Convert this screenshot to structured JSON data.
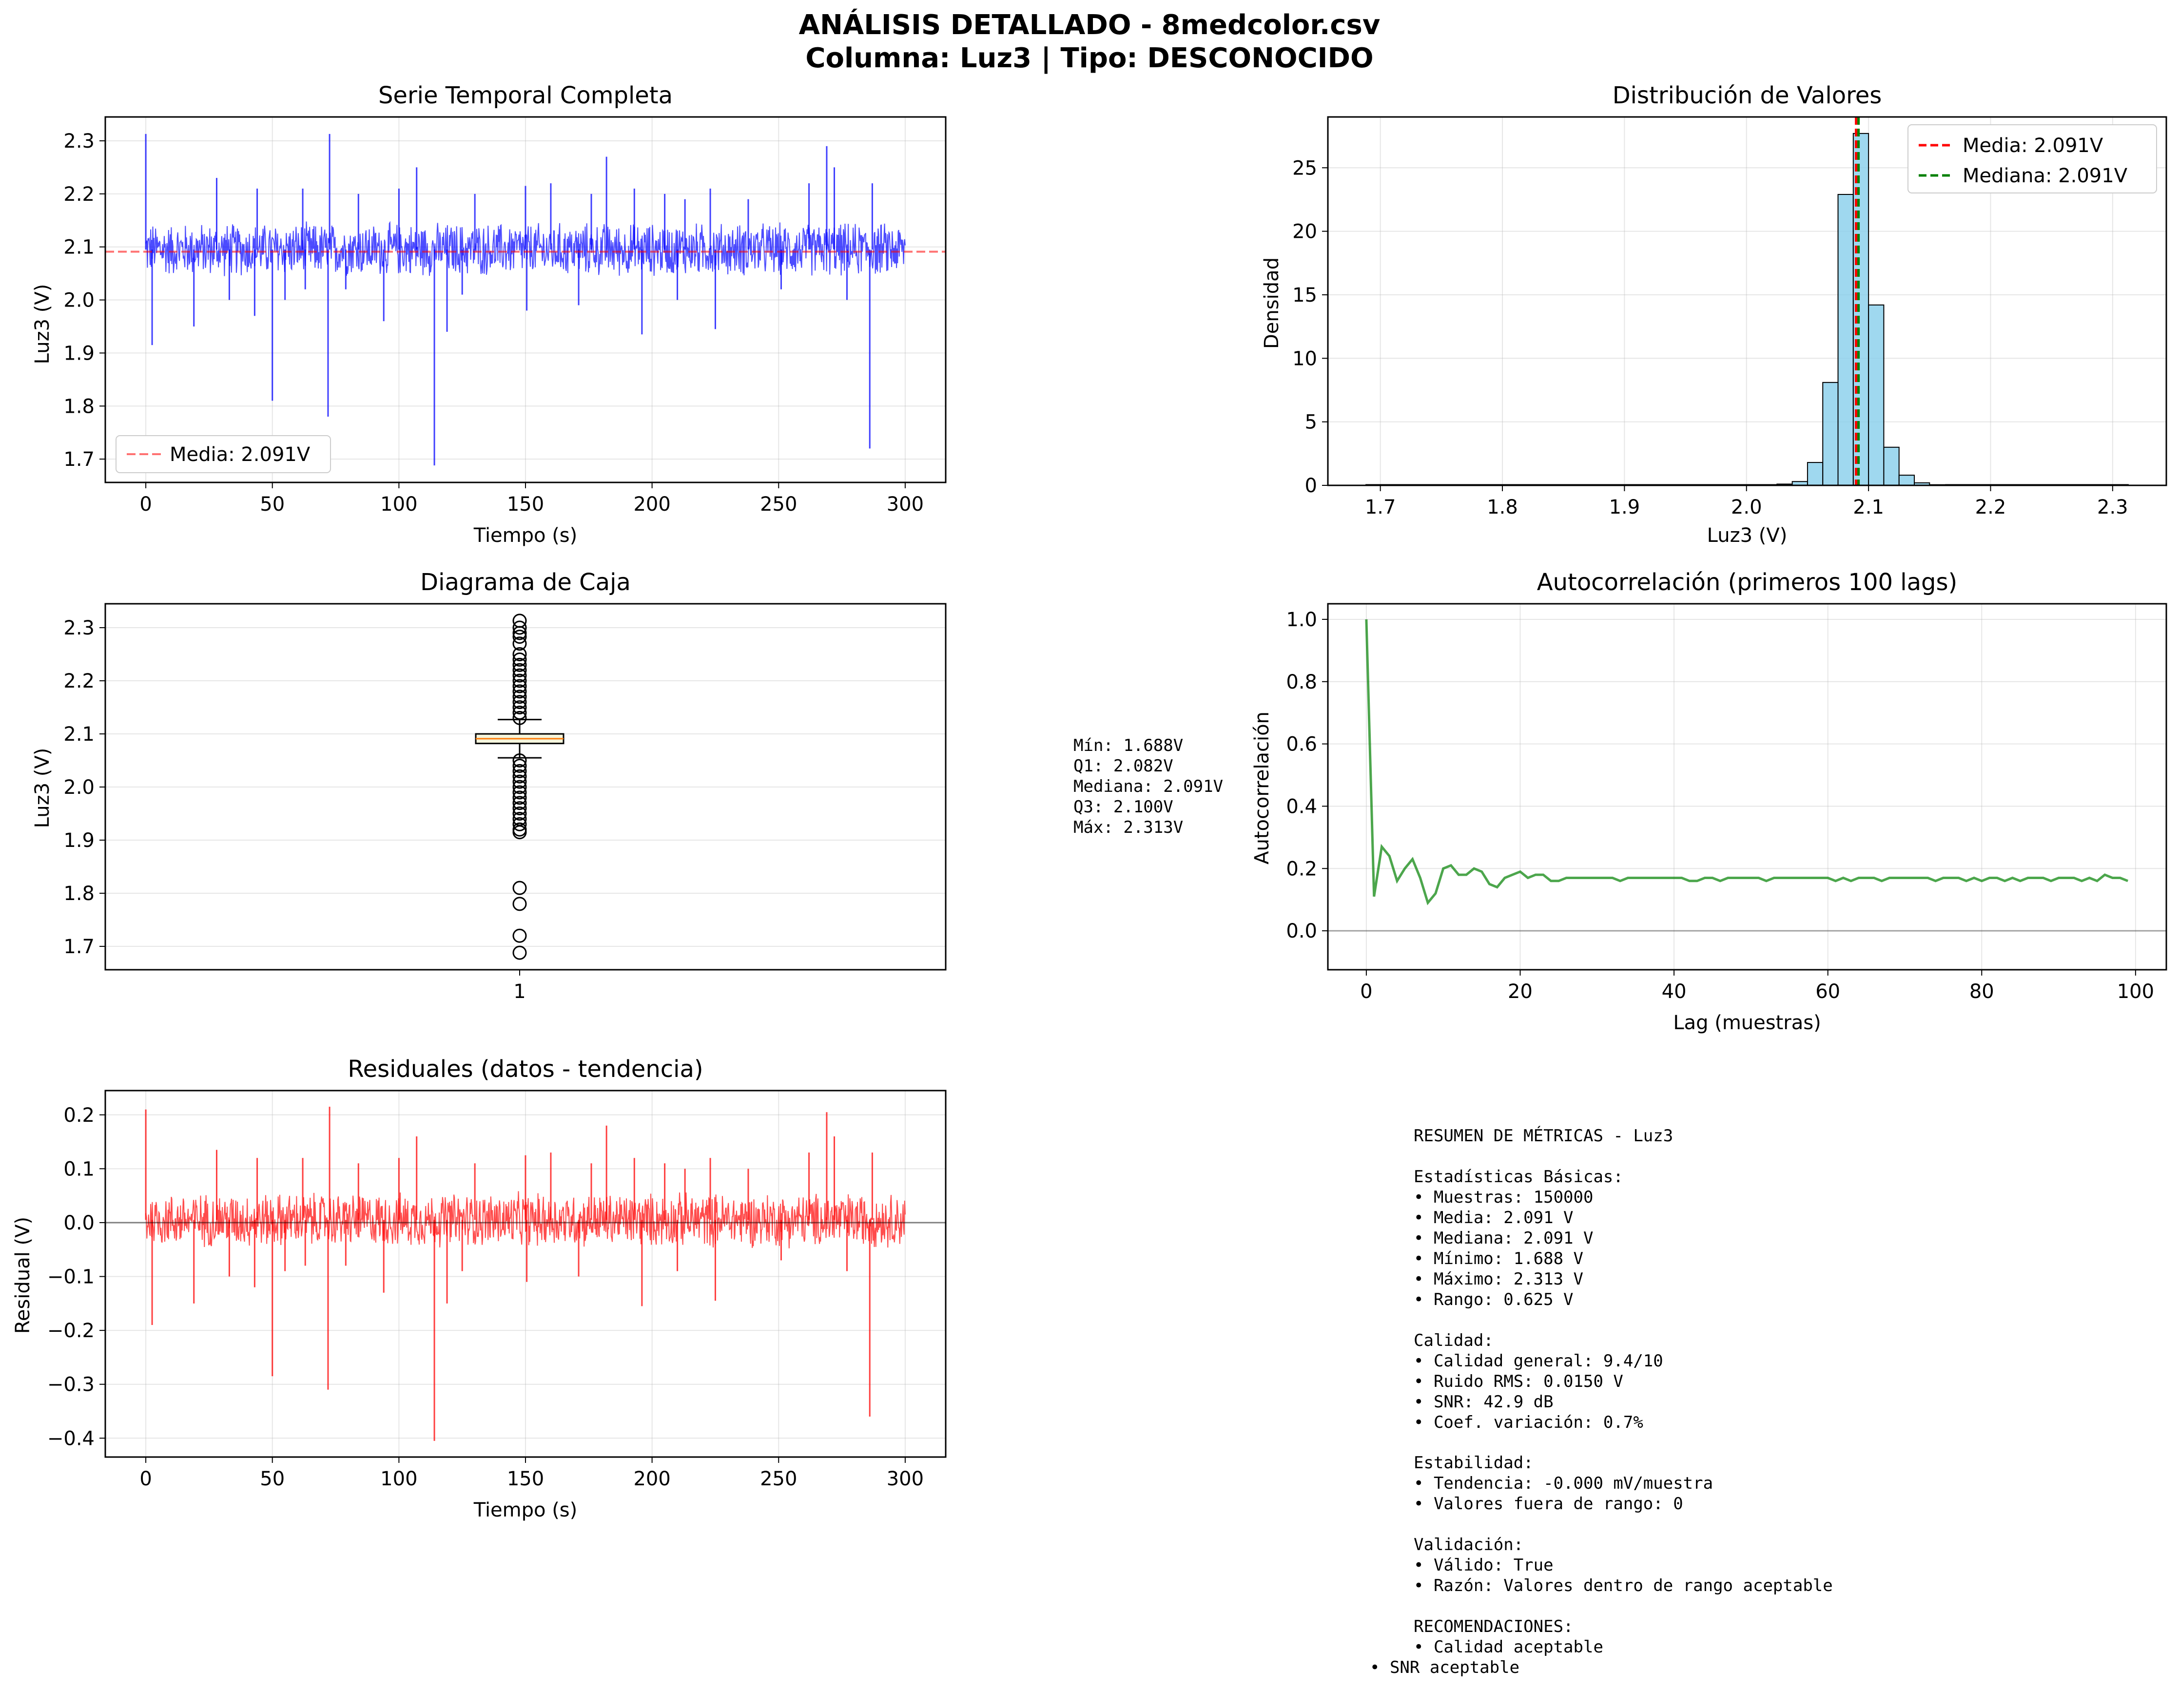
{
  "figure": {
    "title_line1": "ANÁLISIS DETALLADO - 8medcolor.csv",
    "title_line2": "Columna: Luz3 | Tipo: DESCONOCIDO"
  },
  "colors": {
    "series_blue": "#0000ff",
    "series_red": "#ff0000",
    "series_green": "#008000",
    "hist_fill": "#87ceeb",
    "box_fill": "#f5f5dc"
  },
  "chart_data": [
    {
      "id": "serie",
      "type": "line",
      "title": "Serie Temporal Completa",
      "xlabel": "Tiempo (s)",
      "ylabel": "Luz3 (V)",
      "xlim": [
        -16,
        316
      ],
      "ylim": [
        1.656,
        2.345
      ],
      "xticks": [
        0,
        50,
        100,
        150,
        200,
        250,
        300
      ],
      "yticks": [
        1.7,
        1.8,
        1.9,
        2.0,
        2.1,
        2.2,
        2.3
      ],
      "band": {
        "x": [
          0,
          300
        ],
        "low": 2.04,
        "high": 2.15
      },
      "spikes": [
        [
          0,
          2.313
        ],
        [
          2.5,
          1.915
        ],
        [
          19,
          1.95
        ],
        [
          28,
          2.23
        ],
        [
          33,
          2.0
        ],
        [
          43,
          1.97
        ],
        [
          44,
          2.21
        ],
        [
          50,
          1.81
        ],
        [
          55,
          2.0
        ],
        [
          62,
          2.21
        ],
        [
          63,
          2.02
        ],
        [
          72,
          1.78
        ],
        [
          72.6,
          2.313
        ],
        [
          79,
          2.02
        ],
        [
          84,
          2.2
        ],
        [
          94,
          1.96
        ],
        [
          100,
          2.21
        ],
        [
          107,
          2.25
        ],
        [
          114,
          1.688
        ],
        [
          119,
          1.94
        ],
        [
          125,
          2.01
        ],
        [
          130,
          2.2
        ],
        [
          150,
          2.215
        ],
        [
          150.5,
          1.98
        ],
        [
          160,
          2.22
        ],
        [
          171,
          1.99
        ],
        [
          176,
          2.2
        ],
        [
          182,
          2.27
        ],
        [
          193,
          2.21
        ],
        [
          196,
          1.935
        ],
        [
          205,
          2.2
        ],
        [
          210,
          2.0
        ],
        [
          213,
          2.19
        ],
        [
          223,
          2.21
        ],
        [
          225,
          1.945
        ],
        [
          238,
          2.19
        ],
        [
          251,
          2.02
        ],
        [
          262,
          2.22
        ],
        [
          269,
          2.29
        ],
        [
          272,
          2.25
        ],
        [
          277,
          2.0
        ],
        [
          286,
          1.72
        ],
        [
          287,
          2.22
        ]
      ],
      "mean_line": 2.091,
      "legend": [
        {
          "label": "Media: 2.091V",
          "color": "#ff0000",
          "style": "dashed"
        }
      ],
      "legend_position": "lower-left",
      "grid": true
    },
    {
      "id": "hist",
      "type": "bar",
      "title": "Distribución de Valores",
      "xlabel": "Luz3 (V)",
      "ylabel": "Densidad",
      "xlim": [
        1.657,
        2.344
      ],
      "ylim": [
        0,
        29
      ],
      "xticks": [
        1.7,
        1.8,
        1.9,
        2.0,
        2.1,
        2.2,
        2.3
      ],
      "yticks": [
        0,
        5,
        10,
        15,
        20,
        25
      ],
      "bin_width": 0.0125,
      "bins_start": [
        2.025,
        2.0375,
        2.05,
        2.0625,
        2.075,
        2.0875,
        2.1,
        2.1125,
        2.125,
        2.1375,
        2.15
      ],
      "values": [
        0.1,
        0.3,
        1.8,
        8.1,
        22.9,
        27.7,
        14.2,
        3.0,
        0.8,
        0.2,
        0.05
      ],
      "lines": [
        {
          "label": "Media: 2.091V",
          "x": 2.091,
          "color": "#ff0000"
        },
        {
          "label": "Mediana: 2.091V",
          "x": 2.091,
          "color": "#008000"
        }
      ],
      "legend_position": "top-right",
      "grid": true
    },
    {
      "id": "box",
      "type": "box",
      "title": "Diagrama de Caja",
      "ylabel": "Luz3 (V)",
      "xticklabels": [
        "1"
      ],
      "ylim": [
        1.656,
        2.345
      ],
      "yticks": [
        1.7,
        1.8,
        1.9,
        2.0,
        2.1,
        2.2,
        2.3
      ],
      "q1": 2.082,
      "median": 2.091,
      "q3": 2.1,
      "whisker_low": 2.055,
      "whisker_high": 2.127,
      "outliers": [
        2.313,
        2.3,
        2.29,
        2.283,
        2.27,
        2.25,
        2.24,
        2.23,
        2.22,
        2.21,
        2.2,
        2.19,
        2.18,
        2.17,
        2.16,
        2.15,
        2.14,
        2.13,
        2.05,
        2.04,
        2.03,
        2.02,
        2.01,
        2.0,
        1.99,
        1.98,
        1.97,
        1.96,
        1.95,
        1.94,
        1.93,
        1.92,
        1.915,
        1.81,
        1.78,
        1.72,
        1.688
      ],
      "grid": true
    },
    {
      "id": "acf",
      "type": "line",
      "title": "Autocorrelación (primeros 100 lags)",
      "xlabel": "Lag (muestras)",
      "ylabel": "Autocorrelación",
      "xlim": [
        -5,
        104
      ],
      "ylim": [
        -0.125,
        1.05
      ],
      "xticks": [
        0,
        20,
        40,
        60,
        80,
        100
      ],
      "yticks": [
        0.0,
        0.2,
        0.4,
        0.6,
        0.8,
        1.0
      ],
      "values": [
        1.0,
        0.11,
        0.27,
        0.24,
        0.16,
        0.2,
        0.23,
        0.17,
        0.09,
        0.12,
        0.2,
        0.21,
        0.18,
        0.18,
        0.2,
        0.19,
        0.15,
        0.14,
        0.17,
        0.18,
        0.19,
        0.17,
        0.18,
        0.18,
        0.16,
        0.16,
        0.17,
        0.17,
        0.17,
        0.17,
        0.17,
        0.17,
        0.17,
        0.16,
        0.17,
        0.17,
        0.17,
        0.17,
        0.17,
        0.17,
        0.17,
        0.17,
        0.16,
        0.16,
        0.17,
        0.17,
        0.16,
        0.17,
        0.17,
        0.17,
        0.17,
        0.17,
        0.16,
        0.17,
        0.17,
        0.17,
        0.17,
        0.17,
        0.17,
        0.17,
        0.17,
        0.16,
        0.17,
        0.16,
        0.17,
        0.17,
        0.17,
        0.16,
        0.17,
        0.17,
        0.17,
        0.17,
        0.17,
        0.17,
        0.16,
        0.17,
        0.17,
        0.17,
        0.16,
        0.17,
        0.16,
        0.17,
        0.17,
        0.16,
        0.17,
        0.16,
        0.17,
        0.17,
        0.17,
        0.16,
        0.17,
        0.17,
        0.17,
        0.16,
        0.17,
        0.16,
        0.18,
        0.17,
        0.17,
        0.16
      ],
      "zero_line": 0,
      "grid": true
    },
    {
      "id": "resid",
      "type": "line",
      "title": "Residuales (datos - tendencia)",
      "xlabel": "Tiempo (s)",
      "ylabel": "Residual (V)",
      "xlim": [
        -16,
        316
      ],
      "ylim": [
        -0.435,
        0.245
      ],
      "xticks": [
        0,
        50,
        100,
        150,
        200,
        250,
        300
      ],
      "yticks": [
        -0.4,
        -0.3,
        -0.2,
        -0.1,
        0.0,
        0.1,
        0.2
      ],
      "band": {
        "x": [
          0,
          300
        ],
        "low": -0.05,
        "high": 0.06
      },
      "spikes": [
        [
          0,
          0.21
        ],
        [
          2.5,
          -0.19
        ],
        [
          19,
          -0.15
        ],
        [
          28,
          0.135
        ],
        [
          33,
          -0.1
        ],
        [
          43,
          -0.12
        ],
        [
          44,
          0.12
        ],
        [
          50,
          -0.285
        ],
        [
          55,
          -0.09
        ],
        [
          62,
          0.12
        ],
        [
          63,
          -0.08
        ],
        [
          72,
          -0.31
        ],
        [
          72.6,
          0.215
        ],
        [
          79,
          -0.08
        ],
        [
          84,
          0.11
        ],
        [
          94,
          -0.13
        ],
        [
          100,
          0.12
        ],
        [
          107,
          0.16
        ],
        [
          114,
          -0.405
        ],
        [
          119,
          -0.15
        ],
        [
          125,
          -0.09
        ],
        [
          130,
          0.11
        ],
        [
          150,
          0.125
        ],
        [
          150.5,
          -0.11
        ],
        [
          160,
          0.13
        ],
        [
          171,
          -0.1
        ],
        [
          176,
          0.11
        ],
        [
          182,
          0.18
        ],
        [
          193,
          0.12
        ],
        [
          196,
          -0.155
        ],
        [
          205,
          0.11
        ],
        [
          210,
          -0.09
        ],
        [
          213,
          0.1
        ],
        [
          223,
          0.12
        ],
        [
          225,
          -0.145
        ],
        [
          238,
          0.1
        ],
        [
          251,
          -0.07
        ],
        [
          262,
          0.13
        ],
        [
          269,
          0.205
        ],
        [
          272,
          0.16
        ],
        [
          277,
          -0.09
        ],
        [
          286,
          -0.36
        ],
        [
          287,
          0.13
        ]
      ],
      "zero_line": 0,
      "grid": true
    }
  ],
  "box_stats_text": [
    "Mín: 1.688V",
    "Q1: 2.082V",
    "Mediana: 2.091V",
    "Q3: 2.100V",
    "Máx: 2.313V"
  ],
  "summary_text": [
    "RESUMEN DE MÉTRICAS - Luz3",
    "",
    "Estadísticas Básicas:",
    "• Muestras: 150000",
    "• Media: 2.091 V",
    "• Mediana: 2.091 V",
    "• Mínimo: 1.688 V",
    "• Máximo: 2.313 V",
    "• Rango: 0.625 V",
    "",
    "Calidad:",
    "• Calidad general: 9.4/10",
    "• Ruido RMS: 0.0150 V",
    "• SNR: 42.9 dB",
    "• Coef. variación: 0.7%",
    "",
    "Estabilidad:",
    "• Tendencia: -0.000 mV/muestra",
    "• Valores fuera de rango: 0",
    "",
    "Validación:",
    "• Válido: True",
    "• Razón: Valores dentro de rango aceptable",
    "",
    "RECOMENDACIONES:",
    "• Calidad aceptable",
    "• SNR aceptable"
  ]
}
